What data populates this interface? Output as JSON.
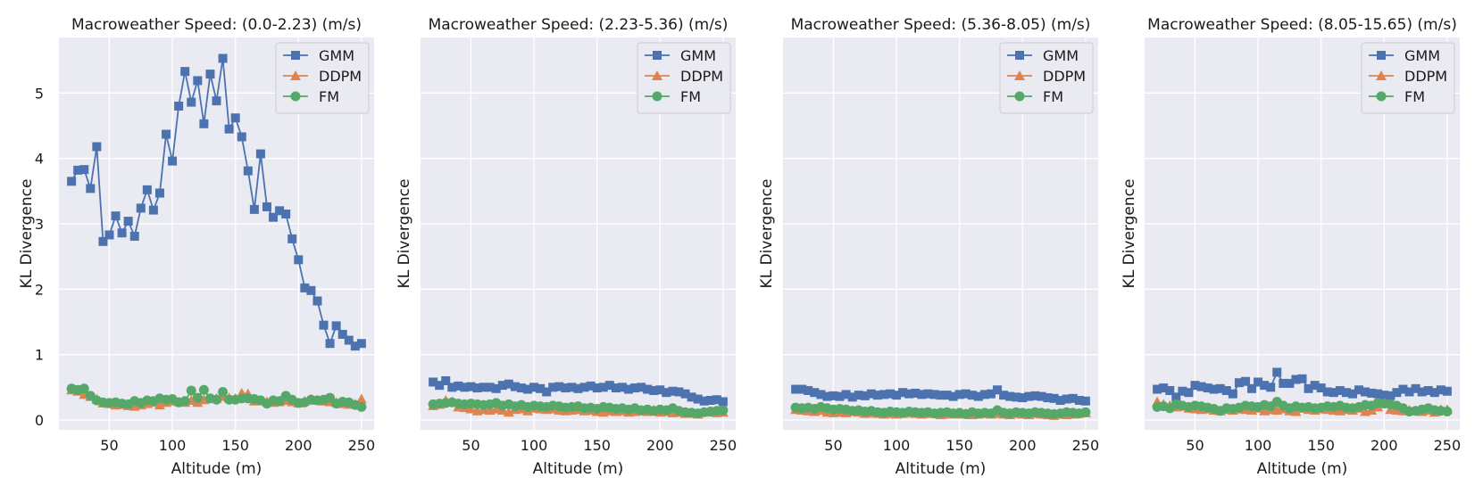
{
  "chart_data": [
    {
      "type": "line",
      "title": "Macroweather Speed: (0.0-2.23) (m/s)",
      "xlabel": "Altitude (m)",
      "ylabel": "KL Divergence",
      "xlim": [
        10,
        260
      ],
      "ylim": [
        -0.15,
        5.85
      ],
      "xticks": [
        50,
        100,
        150,
        200,
        250
      ],
      "yticks": [
        0,
        1,
        2,
        3,
        4,
        5
      ],
      "show_yticklabels": true,
      "legend_loc": "top-right",
      "x": [
        20,
        25,
        30,
        35,
        40,
        45,
        50,
        55,
        60,
        65,
        70,
        75,
        80,
        85,
        90,
        95,
        100,
        105,
        110,
        115,
        120,
        125,
        130,
        135,
        140,
        145,
        150,
        155,
        160,
        165,
        170,
        175,
        180,
        185,
        190,
        195,
        200,
        205,
        210,
        215,
        220,
        225,
        230,
        235,
        240,
        245,
        250
      ],
      "series": [
        {
          "name": "GMM",
          "marker": "square",
          "color": "#4c72b0",
          "values": [
            3.65,
            3.82,
            3.83,
            3.54,
            4.18,
            2.73,
            2.83,
            3.12,
            2.86,
            3.04,
            2.81,
            3.24,
            3.52,
            3.21,
            3.47,
            4.37,
            3.96,
            4.8,
            5.33,
            4.86,
            5.19,
            4.53,
            5.29,
            4.88,
            5.53,
            4.45,
            4.62,
            4.33,
            3.81,
            3.22,
            4.07,
            3.26,
            3.1,
            3.2,
            3.15,
            2.77,
            2.45,
            2.02,
            1.98,
            1.82,
            1.45,
            1.17,
            1.44,
            1.31,
            1.22,
            1.13,
            1.17
          ]
        },
        {
          "name": "DDPM",
          "marker": "triangle",
          "color": "#dd8452",
          "values": [
            0.46,
            0.44,
            0.39,
            0.36,
            0.32,
            0.26,
            0.25,
            0.23,
            0.24,
            0.22,
            0.21,
            0.23,
            0.25,
            0.27,
            0.23,
            0.27,
            0.29,
            0.28,
            0.27,
            0.3,
            0.27,
            0.31,
            0.33,
            0.33,
            0.36,
            0.34,
            0.33,
            0.41,
            0.4,
            0.29,
            0.3,
            0.28,
            0.27,
            0.28,
            0.3,
            0.28,
            0.26,
            0.29,
            0.32,
            0.3,
            0.29,
            0.28,
            0.27,
            0.25,
            0.24,
            0.24,
            0.32
          ]
        },
        {
          "name": "FM",
          "marker": "circle",
          "color": "#55a868",
          "values": [
            0.48,
            0.46,
            0.48,
            0.37,
            0.3,
            0.27,
            0.26,
            0.27,
            0.25,
            0.24,
            0.29,
            0.26,
            0.3,
            0.29,
            0.33,
            0.31,
            0.32,
            0.27,
            0.29,
            0.45,
            0.34,
            0.46,
            0.33,
            0.31,
            0.43,
            0.31,
            0.31,
            0.33,
            0.33,
            0.32,
            0.3,
            0.25,
            0.3,
            0.29,
            0.37,
            0.31,
            0.26,
            0.27,
            0.31,
            0.3,
            0.31,
            0.34,
            0.25,
            0.28,
            0.27,
            0.23,
            0.2
          ]
        }
      ]
    },
    {
      "type": "line",
      "title": "Macroweather Speed: (2.23-5.36) (m/s)",
      "xlabel": "Altitude (m)",
      "ylabel": "KL Divergence",
      "xlim": [
        10,
        260
      ],
      "ylim": [
        -0.15,
        5.85
      ],
      "xticks": [
        50,
        100,
        150,
        200,
        250
      ],
      "yticks": [
        0,
        1,
        2,
        3,
        4,
        5
      ],
      "show_yticklabels": false,
      "legend_loc": "top-right",
      "x": [
        20,
        25,
        30,
        35,
        40,
        45,
        50,
        55,
        60,
        65,
        70,
        75,
        80,
        85,
        90,
        95,
        100,
        105,
        110,
        115,
        120,
        125,
        130,
        135,
        140,
        145,
        150,
        155,
        160,
        165,
        170,
        175,
        180,
        185,
        190,
        195,
        200,
        205,
        210,
        215,
        220,
        225,
        230,
        235,
        240,
        245,
        250
      ],
      "series": [
        {
          "name": "GMM",
          "marker": "square",
          "color": "#4c72b0",
          "values": [
            0.58,
            0.53,
            0.6,
            0.5,
            0.52,
            0.5,
            0.51,
            0.49,
            0.5,
            0.5,
            0.48,
            0.53,
            0.55,
            0.51,
            0.49,
            0.47,
            0.5,
            0.48,
            0.43,
            0.5,
            0.51,
            0.49,
            0.5,
            0.48,
            0.5,
            0.52,
            0.49,
            0.5,
            0.53,
            0.49,
            0.5,
            0.47,
            0.49,
            0.5,
            0.47,
            0.45,
            0.46,
            0.42,
            0.44,
            0.43,
            0.4,
            0.35,
            0.32,
            0.29,
            0.3,
            0.31,
            0.28
          ]
        },
        {
          "name": "DDPM",
          "marker": "triangle",
          "color": "#dd8452",
          "values": [
            0.22,
            0.24,
            0.3,
            0.28,
            0.2,
            0.19,
            0.17,
            0.14,
            0.16,
            0.15,
            0.17,
            0.15,
            0.12,
            0.16,
            0.17,
            0.14,
            0.18,
            0.17,
            0.16,
            0.17,
            0.15,
            0.14,
            0.15,
            0.16,
            0.14,
            0.15,
            0.13,
            0.12,
            0.14,
            0.13,
            0.14,
            0.12,
            0.13,
            0.14,
            0.13,
            0.15,
            0.12,
            0.13,
            0.11,
            0.12,
            0.1,
            0.11,
            0.09,
            0.12,
            0.13,
            0.11,
            0.12
          ]
        },
        {
          "name": "FM",
          "marker": "circle",
          "color": "#55a868",
          "values": [
            0.24,
            0.25,
            0.26,
            0.27,
            0.25,
            0.24,
            0.25,
            0.24,
            0.23,
            0.24,
            0.26,
            0.22,
            0.24,
            0.21,
            0.23,
            0.2,
            0.22,
            0.21,
            0.2,
            0.22,
            0.21,
            0.19,
            0.2,
            0.21,
            0.18,
            0.19,
            0.17,
            0.2,
            0.19,
            0.17,
            0.18,
            0.16,
            0.18,
            0.15,
            0.16,
            0.14,
            0.16,
            0.15,
            0.18,
            0.14,
            0.12,
            0.11,
            0.1,
            0.12,
            0.13,
            0.14,
            0.15
          ]
        }
      ]
    },
    {
      "type": "line",
      "title": "Macroweather Speed: (5.36-8.05) (m/s)",
      "xlabel": "Altitude (m)",
      "ylabel": "KL Divergence",
      "xlim": [
        10,
        260
      ],
      "ylim": [
        -0.15,
        5.85
      ],
      "xticks": [
        50,
        100,
        150,
        200,
        250
      ],
      "yticks": [
        0,
        1,
        2,
        3,
        4,
        5
      ],
      "show_yticklabels": false,
      "legend_loc": "top-right",
      "x": [
        20,
        25,
        30,
        35,
        40,
        45,
        50,
        55,
        60,
        65,
        70,
        75,
        80,
        85,
        90,
        95,
        100,
        105,
        110,
        115,
        120,
        125,
        130,
        135,
        140,
        145,
        150,
        155,
        160,
        165,
        170,
        175,
        180,
        185,
        190,
        195,
        200,
        205,
        210,
        215,
        220,
        225,
        230,
        235,
        240,
        245,
        250
      ],
      "series": [
        {
          "name": "GMM",
          "marker": "square",
          "color": "#4c72b0",
          "values": [
            0.47,
            0.47,
            0.45,
            0.42,
            0.39,
            0.36,
            0.37,
            0.36,
            0.39,
            0.35,
            0.38,
            0.37,
            0.4,
            0.38,
            0.39,
            0.4,
            0.38,
            0.42,
            0.4,
            0.41,
            0.39,
            0.4,
            0.39,
            0.38,
            0.38,
            0.36,
            0.39,
            0.4,
            0.38,
            0.36,
            0.39,
            0.4,
            0.46,
            0.38,
            0.36,
            0.35,
            0.34,
            0.36,
            0.37,
            0.36,
            0.34,
            0.33,
            0.3,
            0.32,
            0.33,
            0.3,
            0.29
          ]
        },
        {
          "name": "DDPM",
          "marker": "triangle",
          "color": "#dd8452",
          "values": [
            0.16,
            0.15,
            0.14,
            0.13,
            0.15,
            0.12,
            0.11,
            0.12,
            0.11,
            0.13,
            0.12,
            0.1,
            0.11,
            0.1,
            0.09,
            0.1,
            0.09,
            0.1,
            0.11,
            0.1,
            0.09,
            0.1,
            0.1,
            0.08,
            0.09,
            0.1,
            0.09,
            0.1,
            0.08,
            0.09,
            0.1,
            0.09,
            0.1,
            0.09,
            0.08,
            0.1,
            0.09,
            0.08,
            0.1,
            0.09,
            0.08,
            0.07,
            0.09,
            0.08,
            0.09,
            0.1,
            0.11
          ]
        },
        {
          "name": "FM",
          "marker": "circle",
          "color": "#55a868",
          "values": [
            0.19,
            0.18,
            0.19,
            0.17,
            0.2,
            0.18,
            0.16,
            0.17,
            0.16,
            0.14,
            0.15,
            0.13,
            0.14,
            0.12,
            0.11,
            0.13,
            0.12,
            0.11,
            0.13,
            0.12,
            0.11,
            0.12,
            0.1,
            0.11,
            0.12,
            0.1,
            0.11,
            0.09,
            0.12,
            0.1,
            0.11,
            0.1,
            0.15,
            0.11,
            0.1,
            0.12,
            0.11,
            0.1,
            0.12,
            0.11,
            0.1,
            0.09,
            0.1,
            0.12,
            0.11,
            0.1,
            0.12
          ]
        }
      ]
    },
    {
      "type": "line",
      "title": "Macroweather Speed: (8.05-15.65) (m/s)",
      "xlabel": "Altitude (m)",
      "ylabel": "KL Divergence",
      "xlim": [
        10,
        260
      ],
      "ylim": [
        -0.15,
        5.85
      ],
      "xticks": [
        50,
        100,
        150,
        200,
        250
      ],
      "yticks": [
        0,
        1,
        2,
        3,
        4,
        5
      ],
      "show_yticklabels": false,
      "legend_loc": "top-right",
      "x": [
        20,
        25,
        30,
        35,
        40,
        45,
        50,
        55,
        60,
        65,
        70,
        75,
        80,
        85,
        90,
        95,
        100,
        105,
        110,
        115,
        120,
        125,
        130,
        135,
        140,
        145,
        150,
        155,
        160,
        165,
        170,
        175,
        180,
        185,
        190,
        195,
        200,
        205,
        210,
        215,
        220,
        225,
        230,
        235,
        240,
        245,
        250
      ],
      "series": [
        {
          "name": "GMM",
          "marker": "square",
          "color": "#4c72b0",
          "values": [
            0.47,
            0.49,
            0.45,
            0.35,
            0.44,
            0.42,
            0.53,
            0.51,
            0.49,
            0.47,
            0.48,
            0.45,
            0.4,
            0.57,
            0.59,
            0.48,
            0.58,
            0.53,
            0.5,
            0.73,
            0.56,
            0.56,
            0.62,
            0.63,
            0.48,
            0.53,
            0.49,
            0.43,
            0.42,
            0.45,
            0.42,
            0.4,
            0.46,
            0.43,
            0.41,
            0.4,
            0.38,
            0.37,
            0.42,
            0.47,
            0.43,
            0.48,
            0.43,
            0.45,
            0.42,
            0.46,
            0.44
          ]
        },
        {
          "name": "DDPM",
          "marker": "triangle",
          "color": "#dd8452",
          "values": [
            0.28,
            0.24,
            0.22,
            0.2,
            0.21,
            0.18,
            0.17,
            0.16,
            0.17,
            0.15,
            0.14,
            0.16,
            0.15,
            0.17,
            0.16,
            0.15,
            0.18,
            0.14,
            0.16,
            0.15,
            0.17,
            0.14,
            0.13,
            0.18,
            0.16,
            0.15,
            0.17,
            0.16,
            0.15,
            0.14,
            0.16,
            0.15,
            0.18,
            0.13,
            0.15,
            0.2,
            0.25,
            0.16,
            0.15,
            0.14,
            0.15,
            0.14,
            0.13,
            0.15,
            0.12,
            0.16,
            0.16
          ]
        },
        {
          "name": "FM",
          "marker": "circle",
          "color": "#55a868",
          "values": [
            0.2,
            0.21,
            0.18,
            0.24,
            0.22,
            0.2,
            0.22,
            0.21,
            0.19,
            0.17,
            0.14,
            0.18,
            0.17,
            0.19,
            0.22,
            0.21,
            0.2,
            0.23,
            0.21,
            0.28,
            0.22,
            0.18,
            0.21,
            0.19,
            0.2,
            0.18,
            0.19,
            0.21,
            0.2,
            0.22,
            0.19,
            0.18,
            0.2,
            0.23,
            0.22,
            0.26,
            0.25,
            0.24,
            0.22,
            0.18,
            0.13,
            0.14,
            0.16,
            0.18,
            0.15,
            0.14,
            0.13
          ]
        }
      ]
    }
  ]
}
